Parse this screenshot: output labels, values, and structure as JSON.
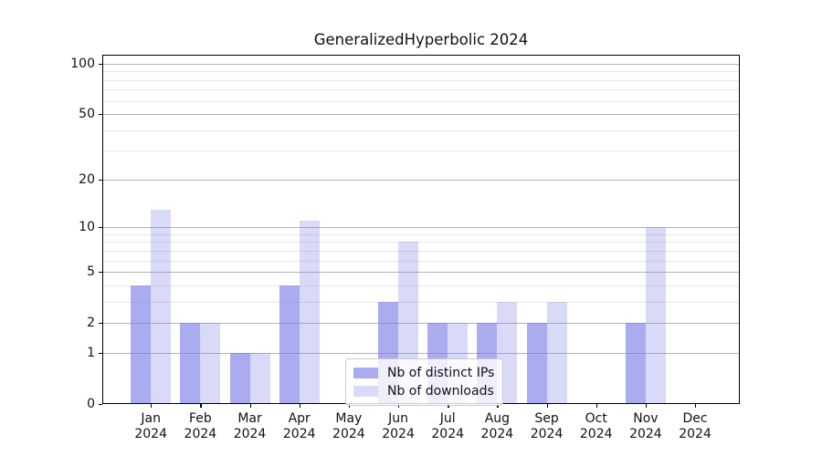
{
  "chart_data": {
    "type": "bar",
    "title": "GeneralizedHyperbolic 2024",
    "categories": [
      "Jan",
      "Feb",
      "Mar",
      "Apr",
      "May",
      "Jun",
      "Jul",
      "Aug",
      "Sep",
      "Oct",
      "Nov",
      "Dec"
    ],
    "category_year": "2024",
    "series": [
      {
        "name": "Nb of distinct IPs",
        "values": [
          4,
          2,
          1,
          4,
          0,
          3,
          2,
          2,
          2,
          0,
          2,
          0
        ],
        "color": "rgba(120,120,230,0.62)"
      },
      {
        "name": "Nb of downloads",
        "values": [
          13,
          2,
          1,
          11,
          0,
          8,
          2,
          3,
          3,
          0,
          10,
          0
        ],
        "color": "rgba(120,120,230,0.28)"
      }
    ],
    "xlabel": "",
    "ylabel": "",
    "y_scale": "log1p",
    "ylim": [
      0,
      113
    ],
    "y_major_ticks": [
      0,
      1,
      2,
      5,
      10,
      20,
      50,
      100
    ],
    "y_minor_gridlines": [
      3,
      4,
      6,
      7,
      8,
      9,
      30,
      40,
      60,
      70,
      80,
      90
    ],
    "grid": true,
    "legend_position": "lower center"
  },
  "colors": {
    "major_grid": "#b3b3b3",
    "minor_grid": "#e7e7e7",
    "spine": "#000000",
    "background": "#ffffff"
  }
}
